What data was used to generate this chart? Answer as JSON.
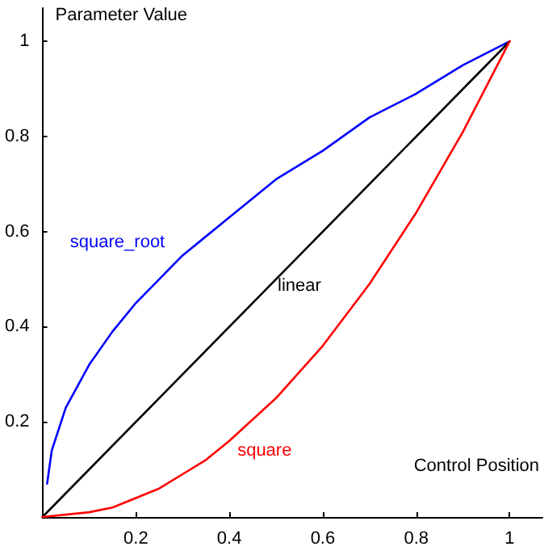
{
  "chart_data": {
    "type": "line",
    "xlabel": "Control Position",
    "ylabel": "Parameter Value",
    "xlim": [
      0,
      1.07
    ],
    "ylim": [
      0,
      1.07
    ],
    "xticks": [
      0.2,
      0.4,
      0.6,
      0.8,
      1
    ],
    "yticks": [
      0.2,
      0.4,
      0.6,
      0.8,
      1
    ],
    "grid": false,
    "legend": false,
    "marker": "none",
    "line_style": "solid",
    "series": [
      {
        "name": "square_root",
        "color": "#0000ff",
        "x": [
          0.01,
          0.02,
          0.05,
          0.1,
          0.15,
          0.2,
          0.25,
          0.3,
          0.35,
          0.4,
          0.5,
          0.6,
          0.7,
          0.8,
          0.9,
          1
        ],
        "values": [
          0.07,
          0.14,
          0.23,
          0.32,
          0.39,
          0.45,
          0.5,
          0.55,
          0.59,
          0.63,
          0.71,
          0.77,
          0.84,
          0.89,
          0.95,
          1
        ]
      },
      {
        "name": "linear",
        "color": "#000000",
        "x": [
          0,
          0.5,
          1
        ],
        "values": [
          0,
          0.5,
          1
        ]
      },
      {
        "name": "square",
        "color": "#ff0000",
        "x": [
          0,
          0.1,
          0.15,
          0.2,
          0.25,
          0.3,
          0.35,
          0.4,
          0.5,
          0.6,
          0.7,
          0.8,
          0.9,
          1
        ],
        "values": [
          0,
          0.01,
          0.02,
          0.04,
          0.06,
          0.09,
          0.12,
          0.16,
          0.25,
          0.36,
          0.49,
          0.64,
          0.81,
          1
        ]
      }
    ]
  }
}
